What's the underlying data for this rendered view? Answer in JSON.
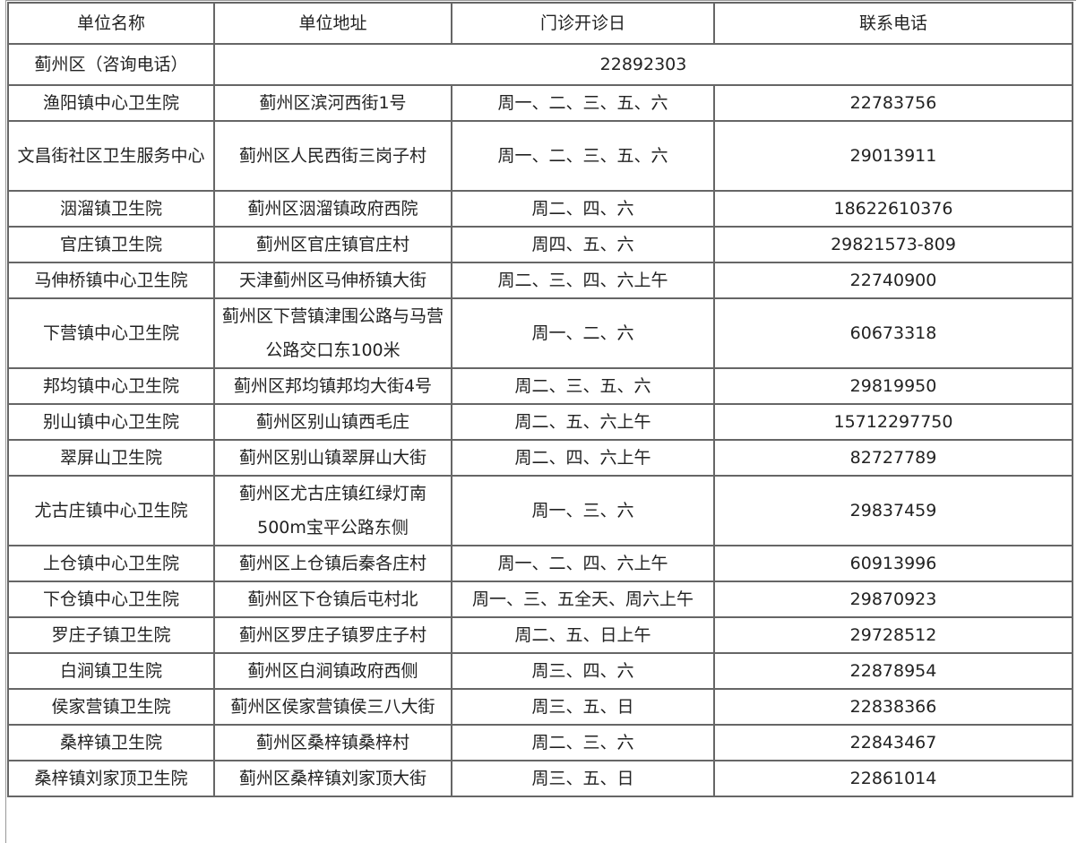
{
  "table": {
    "headers": [
      "单位名称",
      "单位地址",
      "门诊开诊日",
      "联系电话"
    ],
    "consult_row": {
      "name": "蓟州区（咨询电话）",
      "phone": "22892303"
    },
    "rows": [
      {
        "name": "渔阳镇中心卫生院",
        "address": "蓟州区滨河西街1号",
        "days": "周一、二、三、五、六",
        "phone": "22783756"
      },
      {
        "name": "文昌街社区卫生服务中心",
        "address": "蓟州区人民西街三岗子村",
        "days": "周一、二、三、五、六",
        "phone": "29013911"
      },
      {
        "name": "洇溜镇卫生院",
        "address": "蓟州区洇溜镇政府西院",
        "days": "周二、四、六",
        "phone": "18622610376"
      },
      {
        "name": "官庄镇卫生院",
        "address": "蓟州区官庄镇官庄村",
        "days": "周四、五、六",
        "phone": "29821573-809"
      },
      {
        "name": "马伸桥镇中心卫生院",
        "address": "天津蓟州区马伸桥镇大街",
        "days": "周二、三、四、六上午",
        "phone": "22740900"
      },
      {
        "name": "下营镇中心卫生院",
        "address": "蓟州区下营镇津围公路与马营公路交口东100米",
        "days": "周一、二、六",
        "phone": "60673318"
      },
      {
        "name": "邦均镇中心卫生院",
        "address": "蓟州区邦均镇邦均大街4号",
        "days": "周二、三、五、六",
        "phone": "29819950"
      },
      {
        "name": "别山镇中心卫生院",
        "address": "蓟州区别山镇西毛庄",
        "days": "周二、五、六上午",
        "phone": "15712297750"
      },
      {
        "name": "翠屏山卫生院",
        "address": "蓟州区别山镇翠屏山大街",
        "days": "周二、四、六上午",
        "phone": "82727789"
      },
      {
        "name": "尤古庄镇中心卫生院",
        "address": "蓟州区尤古庄镇红绿灯南500m宝平公路东侧",
        "days": "周一、三、六",
        "phone": "29837459"
      },
      {
        "name": "上仓镇中心卫生院",
        "address": "蓟州区上仓镇后秦各庄村",
        "days": "周一、二、四、六上午",
        "phone": "60913996"
      },
      {
        "name": "下仓镇中心卫生院",
        "address": "蓟州区下仓镇后屯村北",
        "days": "周一、三、五全天、周六上午",
        "phone": "29870923"
      },
      {
        "name": "罗庄子镇卫生院",
        "address": "蓟州区罗庄子镇罗庄子村",
        "days": "周二、五、日上午",
        "phone": "29728512"
      },
      {
        "name": "白涧镇卫生院",
        "address": "蓟州区白涧镇政府西侧",
        "days": "周三、四、六",
        "phone": "22878954"
      },
      {
        "name": "侯家营镇卫生院",
        "address": "蓟州区侯家营镇侯三八大街",
        "days": "周三、五、日",
        "phone": "22838366"
      },
      {
        "name": "桑梓镇卫生院",
        "address": "蓟州区桑梓镇桑梓村",
        "days": "周二、三、六",
        "phone": "22843467"
      },
      {
        "name": "桑梓镇刘家顶卫生院",
        "address": "蓟州区桑梓镇刘家顶大街",
        "days": "周三、五、日",
        "phone": "22861014"
      }
    ]
  }
}
